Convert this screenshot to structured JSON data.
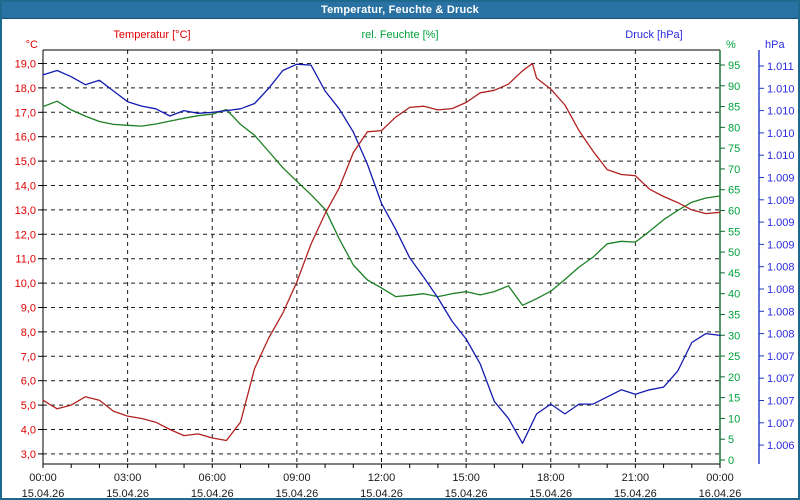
{
  "window": {
    "title": "Temperatur, Feuchte & Druck"
  },
  "legend": {
    "temperature": "Temperatur [°C]",
    "humidity": "rel. Feuchte [%]",
    "pressure": "Druck [hPa]"
  },
  "axes_headers": {
    "left": "°C",
    "right_inner": "%",
    "right_outer": "hPa"
  },
  "colors": {
    "titlebar": "#2a72a4",
    "window_border": "#1d6a8e",
    "temperature_curve": "#b22222",
    "temperature_labels": "#e00000",
    "humidity_curve": "#1d8024",
    "humidity_axis": "#0c6b2c",
    "humidity_labels": "#00a13c",
    "pressure_curve": "#151bb0",
    "pressure_axis": "#2239c8",
    "pressure_labels": "#2a2ae0",
    "gridline": "#1a1a1a",
    "x_labels": "#1a1a1a"
  },
  "chart_data": {
    "type": "line",
    "title": "Temperatur, Feuchte & Druck",
    "grid": {
      "style": "dashed",
      "h_lines_at_celsius": [
        3,
        4,
        5,
        6,
        7,
        8,
        9,
        10,
        11,
        12,
        13,
        14,
        15,
        16,
        17,
        18,
        19
      ],
      "v_lines_at_hours": [
        3,
        6,
        9,
        12,
        15,
        18,
        21
      ]
    },
    "x_axis": {
      "range_hours": [
        0,
        24
      ],
      "minor_tick_hours": 1,
      "major_ticks": [
        {
          "hour": 0,
          "time": "00:00",
          "date": "15.04.26"
        },
        {
          "hour": 3,
          "time": "03:00",
          "date": "15.04.26"
        },
        {
          "hour": 6,
          "time": "06:00",
          "date": "15.04.26"
        },
        {
          "hour": 9,
          "time": "09:00",
          "date": "15.04.26"
        },
        {
          "hour": 12,
          "time": "12:00",
          "date": "15.04.26"
        },
        {
          "hour": 15,
          "time": "15:00",
          "date": "15.04.26"
        },
        {
          "hour": 18,
          "time": "18:00",
          "date": "15.04.26"
        },
        {
          "hour": 21,
          "time": "21:00",
          "date": "15.04.26"
        },
        {
          "hour": 24,
          "time": "00:00",
          "date": "16.04.26"
        }
      ]
    },
    "left_axis": {
      "unit": "°C",
      "min": 3,
      "max": 19,
      "tick_step": 1,
      "decimal_separator": ","
    },
    "right_inner_axis": {
      "unit": "%",
      "min": 0,
      "max": 95,
      "tick_step": 5
    },
    "right_outer_axis": {
      "unit": "hPa",
      "tick_labels": [
        "1.011",
        "1.010",
        "1.010",
        "1.010",
        "1.010",
        "1.009",
        "1.009",
        "1.009",
        "1.009",
        "1.008",
        "1.008",
        "1.008",
        "1.008",
        "1.007",
        "1.007",
        "1.007",
        "1.007",
        "1.006"
      ],
      "top_value_hpa": 1011.2,
      "tick_step_hpa": 0.25
    },
    "series": [
      {
        "name": "Temperatur [°C]",
        "unit": "°C",
        "axis": "left",
        "x": [
          0,
          0.5,
          1,
          1.5,
          2,
          2.5,
          3,
          3.5,
          4,
          4.5,
          5,
          5.5,
          6,
          6.5,
          7,
          7.5,
          8,
          8.5,
          9,
          9.5,
          10,
          10.5,
          11,
          11.5,
          12,
          12.5,
          13,
          13.5,
          14,
          14.5,
          15,
          15.5,
          16,
          16.5,
          17,
          17.35,
          17.5,
          18,
          18.5,
          19,
          19.5,
          20,
          20.5,
          21,
          21.5,
          22,
          22.5,
          23,
          23.5,
          24
        ],
        "values": [
          5.2,
          4.85,
          5.0,
          5.34,
          5.2,
          4.75,
          4.55,
          4.45,
          4.3,
          4.0,
          3.75,
          3.82,
          3.65,
          3.55,
          4.3,
          6.5,
          7.75,
          8.77,
          10.05,
          11.6,
          12.85,
          13.9,
          15.35,
          16.2,
          16.25,
          16.8,
          17.2,
          17.25,
          17.1,
          17.15,
          17.4,
          17.8,
          17.9,
          18.15,
          18.7,
          19.0,
          18.4,
          17.95,
          17.3,
          16.25,
          15.4,
          14.65,
          14.45,
          14.4,
          13.85,
          13.55,
          13.3,
          13.0,
          12.85,
          12.9
        ]
      },
      {
        "name": "rel. Feuchte [%]",
        "unit": "%",
        "axis": "right_inner",
        "x": [
          0,
          0.5,
          1,
          1.5,
          2,
          2.5,
          3,
          3.5,
          4,
          4.5,
          5,
          5.5,
          6,
          6.5,
          7,
          7.5,
          8,
          8.5,
          9,
          9.5,
          10,
          10.5,
          11,
          11.5,
          12,
          12.5,
          13,
          13.5,
          14,
          14.5,
          15,
          15.5,
          16,
          16.5,
          17,
          17.5,
          18,
          18.5,
          19,
          19.5,
          20,
          20.5,
          21,
          21.5,
          22,
          22.5,
          23,
          23.5,
          24
        ],
        "values": [
          85.0,
          86.3,
          84.2,
          82.7,
          81.4,
          80.7,
          80.5,
          80.3,
          80.8,
          81.5,
          82.2,
          82.8,
          83.2,
          84.3,
          80.7,
          78.1,
          74.2,
          70.3,
          67.0,
          63.8,
          60.3,
          53.2,
          46.9,
          43.3,
          41.4,
          39.3,
          39.6,
          40.0,
          39.3,
          40.0,
          40.5,
          39.7,
          40.5,
          41.9,
          37.2,
          38.8,
          40.6,
          43.4,
          46.4,
          48.8,
          52.0,
          52.6,
          52.4,
          55.0,
          57.8,
          60.0,
          62.0,
          63.0,
          63.5
        ]
      },
      {
        "name": "Druck [hPa]",
        "unit": "hPa",
        "axis": "right_outer",
        "x": [
          0,
          0.5,
          1,
          1.5,
          2,
          2.5,
          3,
          3.5,
          4,
          4.5,
          5,
          5.5,
          6,
          6.5,
          7,
          7.5,
          8,
          8.5,
          9,
          9.5,
          10,
          10.5,
          11,
          11.5,
          12,
          12.5,
          13,
          13.5,
          14,
          14.5,
          15,
          15.5,
          16,
          16.5,
          17,
          17.5,
          18,
          18.5,
          19,
          19.5,
          20,
          20.5,
          21,
          21.5,
          22,
          22.5,
          23,
          23.5,
          24
        ],
        "values": [
          1011.1,
          1011.15,
          1011.08,
          1010.99,
          1011.04,
          1010.92,
          1010.8,
          1010.75,
          1010.72,
          1010.64,
          1010.7,
          1010.67,
          1010.68,
          1010.7,
          1010.72,
          1010.78,
          1010.95,
          1011.15,
          1011.22,
          1011.21,
          1010.92,
          1010.72,
          1010.46,
          1010.1,
          1009.66,
          1009.37,
          1009.05,
          1008.83,
          1008.6,
          1008.34,
          1008.14,
          1007.86,
          1007.44,
          1007.25,
          1006.97,
          1007.3,
          1007.41,
          1007.3,
          1007.41,
          1007.41,
          1007.49,
          1007.57,
          1007.52,
          1007.57,
          1007.6,
          1007.78,
          1008.1,
          1008.2,
          1008.18
        ]
      }
    ]
  }
}
